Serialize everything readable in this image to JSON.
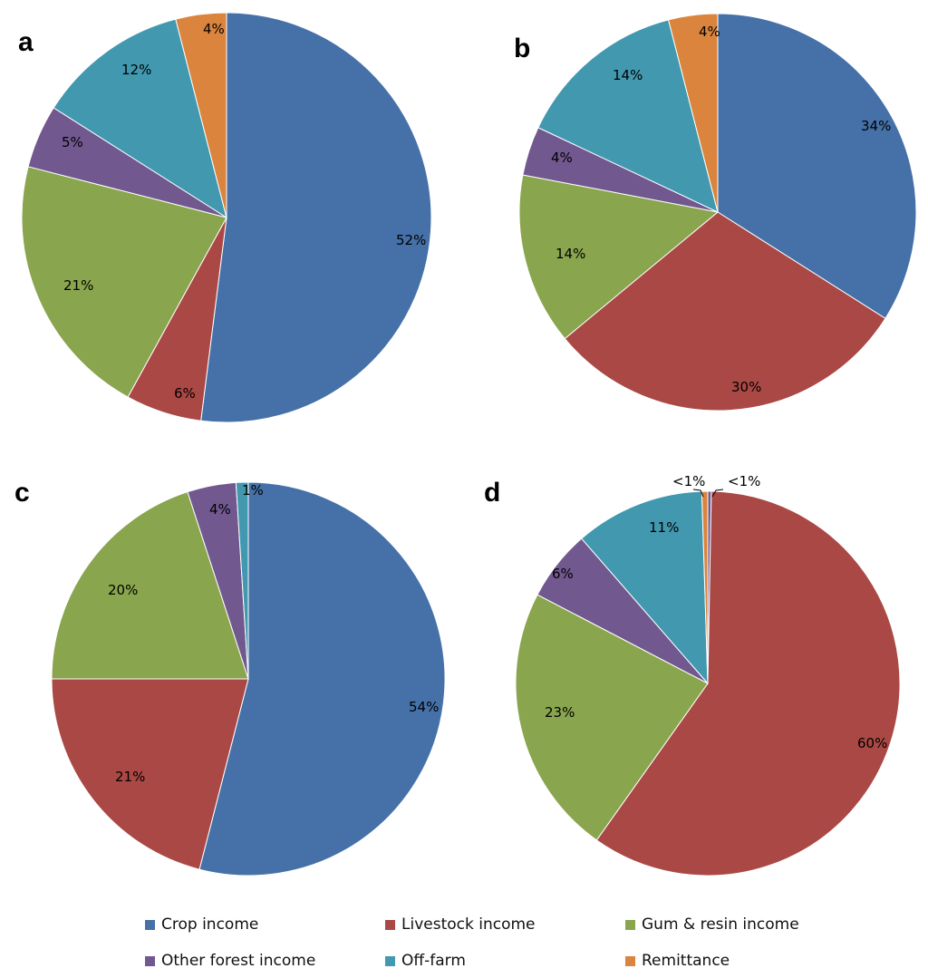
{
  "colors": {
    "crop": "#4571A8",
    "livestock": "#AA4845",
    "gum": "#89A54E",
    "other_forest": "#71588F",
    "offfarm": "#4198AF",
    "remittance": "#DB843D"
  },
  "legend": {
    "items": [
      {
        "key": "crop",
        "label": "Crop income"
      },
      {
        "key": "livestock",
        "label": "Livestock income"
      },
      {
        "key": "gum",
        "label": "Gum & resin income"
      },
      {
        "key": "other_forest",
        "label": "Other forest income"
      },
      {
        "key": "offfarm",
        "label": "Off-farm"
      },
      {
        "key": "remittance",
        "label": "Remittance"
      }
    ]
  },
  "chart_data": [
    {
      "type": "pie",
      "panel": "a",
      "slices": [
        {
          "key": "crop",
          "name": "Crop income",
          "value": 52,
          "label": "52%"
        },
        {
          "key": "livestock",
          "name": "Livestock income",
          "value": 6,
          "label": "6%"
        },
        {
          "key": "gum",
          "name": "Gum & resin income",
          "value": 21,
          "label": "21%"
        },
        {
          "key": "other_forest",
          "name": "Other forest income",
          "value": 5,
          "label": "5%"
        },
        {
          "key": "offfarm",
          "name": "Off-farm",
          "value": 12,
          "label": "12%"
        },
        {
          "key": "remittance",
          "name": "Remittance",
          "value": 4,
          "label": "4%"
        }
      ]
    },
    {
      "type": "pie",
      "panel": "b",
      "slices": [
        {
          "key": "crop",
          "name": "Crop income",
          "value": 34,
          "label": "34%"
        },
        {
          "key": "livestock",
          "name": "Livestock income",
          "value": 30,
          "label": "30%"
        },
        {
          "key": "gum",
          "name": "Gum & resin income",
          "value": 14,
          "label": "14%"
        },
        {
          "key": "other_forest",
          "name": "Other forest income",
          "value": 4,
          "label": "4%"
        },
        {
          "key": "offfarm",
          "name": "Off-farm",
          "value": 14,
          "label": "14%"
        },
        {
          "key": "remittance",
          "name": "Remittance",
          "value": 4,
          "label": "4%"
        }
      ]
    },
    {
      "type": "pie",
      "panel": "c",
      "slices": [
        {
          "key": "crop",
          "name": "Crop income",
          "value": 54,
          "label": "54%"
        },
        {
          "key": "livestock",
          "name": "Livestock income",
          "value": 21,
          "label": "21%"
        },
        {
          "key": "gum",
          "name": "Gum & resin income",
          "value": 20,
          "label": "20%"
        },
        {
          "key": "other_forest",
          "name": "Other forest income",
          "value": 4,
          "label": "4%"
        },
        {
          "key": "offfarm",
          "name": "Off-farm",
          "value": 1,
          "label": "1%"
        }
      ]
    },
    {
      "type": "pie",
      "panel": "d",
      "slices": [
        {
          "key": "other_forest",
          "name": "Other forest income",
          "value": 0.3,
          "label": "<1%"
        },
        {
          "key": "livestock",
          "name": "Livestock income",
          "value": 60,
          "label": "60%"
        },
        {
          "key": "gum",
          "name": "Gum & resin income",
          "value": 23,
          "label": "23%"
        },
        {
          "key": "other_forest",
          "name": "Other forest income",
          "value": 6,
          "label": "6%"
        },
        {
          "key": "offfarm",
          "name": "Off-farm",
          "value": 11,
          "label": "11%"
        },
        {
          "key": "remittance",
          "name": "Remittance",
          "value": 0.5,
          "label": "<1%"
        }
      ]
    }
  ]
}
